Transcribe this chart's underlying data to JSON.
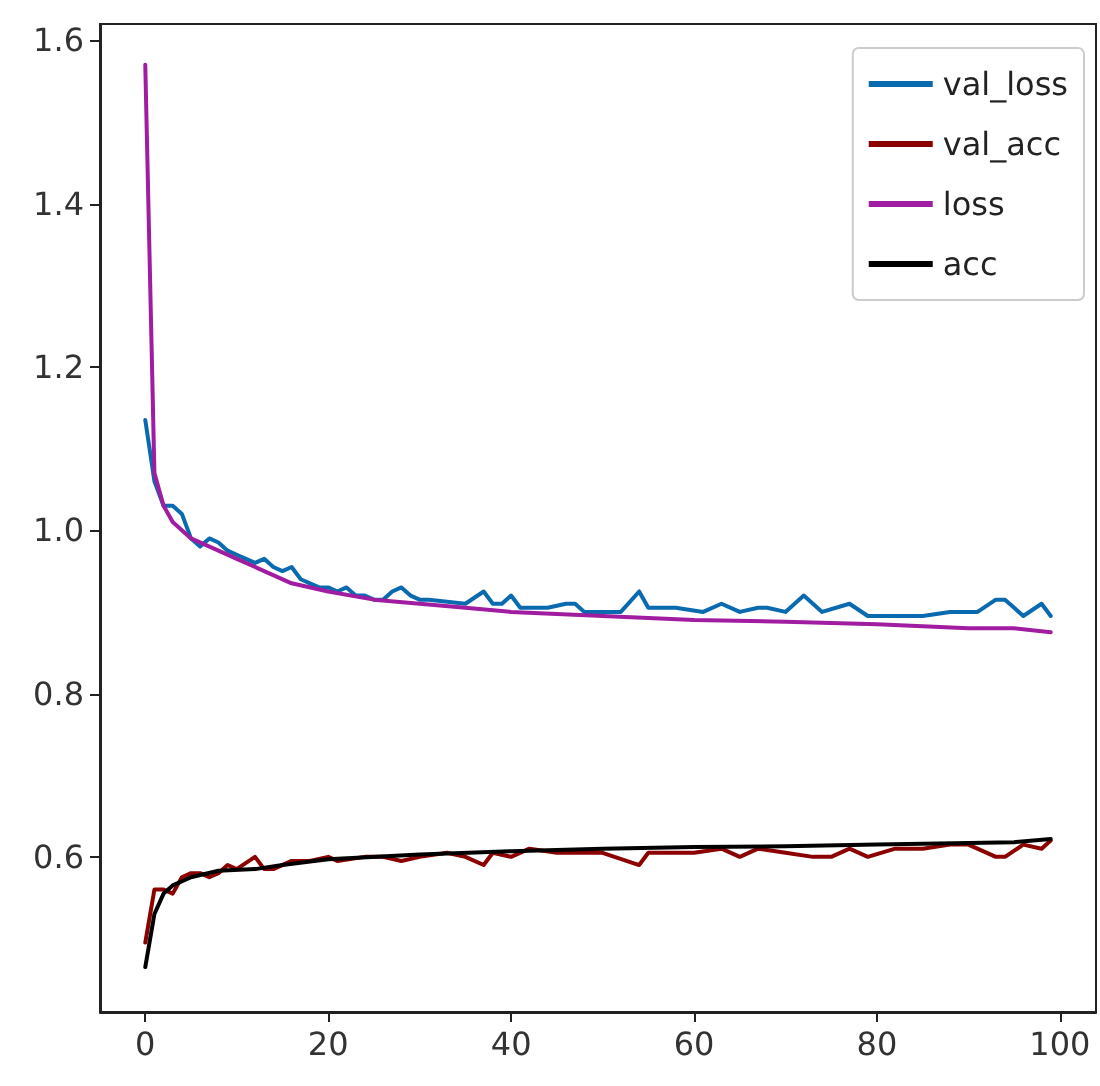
{
  "chart_data": {
    "type": "line",
    "xlim": [
      -4.95,
      103.95
    ],
    "xticks": [
      0,
      20,
      40,
      60,
      80,
      100
    ],
    "ylim": [
      0.41,
      1.62
    ],
    "yticks": [
      {
        "value": 0.6,
        "label": "0.6"
      },
      {
        "value": 0.8,
        "label": "0.8"
      },
      {
        "value": 1.0,
        "label": "1.0"
      },
      {
        "value": 1.2,
        "label": "1.2"
      },
      {
        "value": 1.4,
        "label": "1.4"
      },
      {
        "value": 1.6,
        "label": "1.6"
      }
    ],
    "grid": false,
    "legend": "top right",
    "marker": "none",
    "line_style": "solid",
    "series": [
      {
        "name": "val_loss",
        "color": "#0a6ab0",
        "x": [
          0,
          1,
          2,
          3,
          4,
          5,
          6,
          7,
          8,
          9,
          10,
          11,
          12,
          13,
          14,
          15,
          16,
          17,
          18,
          19,
          20,
          21,
          22,
          23,
          24,
          25,
          26,
          27,
          28,
          29,
          30,
          31,
          35,
          37,
          38,
          39,
          40,
          41,
          44,
          46,
          47,
          48,
          52,
          54,
          55,
          58,
          61,
          63,
          65,
          67,
          68,
          70,
          72,
          74,
          77,
          79,
          82,
          85,
          88,
          91,
          93,
          94,
          95,
          96,
          98,
          99
        ],
        "values": [
          1.135,
          1.06,
          1.03,
          1.03,
          1.02,
          0.99,
          0.98,
          0.99,
          0.985,
          0.975,
          0.97,
          0.965,
          0.96,
          0.965,
          0.955,
          0.95,
          0.955,
          0.94,
          0.935,
          0.93,
          0.93,
          0.925,
          0.93,
          0.92,
          0.92,
          0.915,
          0.915,
          0.925,
          0.93,
          0.92,
          0.915,
          0.915,
          0.91,
          0.925,
          0.91,
          0.91,
          0.92,
          0.905,
          0.905,
          0.91,
          0.91,
          0.9,
          0.9,
          0.925,
          0.905,
          0.905,
          0.9,
          0.91,
          0.9,
          0.905,
          0.905,
          0.9,
          0.92,
          0.9,
          0.91,
          0.895,
          0.895,
          0.895,
          0.9,
          0.9,
          0.915,
          0.915,
          0.905,
          0.895,
          0.91,
          0.895
        ]
      },
      {
        "name": "val_acc",
        "color": "#8b0000",
        "x": [
          0,
          1,
          2,
          3,
          4,
          5,
          6,
          7,
          8,
          9,
          10,
          12,
          13,
          14,
          16,
          18,
          20,
          21,
          24,
          26,
          28,
          30,
          33,
          35,
          37,
          38,
          40,
          42,
          45,
          50,
          54,
          55,
          60,
          63,
          65,
          67,
          70,
          73,
          75,
          77,
          79,
          82,
          85,
          88,
          90,
          93,
          94,
          96,
          98,
          99
        ],
        "values": [
          0.495,
          0.56,
          0.56,
          0.555,
          0.575,
          0.58,
          0.58,
          0.575,
          0.58,
          0.59,
          0.585,
          0.6,
          0.585,
          0.585,
          0.595,
          0.595,
          0.6,
          0.595,
          0.6,
          0.6,
          0.595,
          0.6,
          0.605,
          0.6,
          0.59,
          0.605,
          0.6,
          0.61,
          0.605,
          0.605,
          0.59,
          0.605,
          0.605,
          0.61,
          0.6,
          0.61,
          0.605,
          0.6,
          0.6,
          0.61,
          0.6,
          0.61,
          0.61,
          0.615,
          0.615,
          0.6,
          0.6,
          0.615,
          0.61,
          0.62
        ]
      },
      {
        "name": "loss",
        "color": "#a01ca0",
        "x": [
          0,
          1,
          2,
          3,
          5,
          8,
          10,
          13,
          16,
          20,
          25,
          30,
          35,
          40,
          50,
          60,
          70,
          80,
          90,
          95,
          99
        ],
        "values": [
          1.57,
          1.07,
          1.03,
          1.01,
          0.99,
          0.975,
          0.965,
          0.95,
          0.935,
          0.925,
          0.915,
          0.91,
          0.905,
          0.9,
          0.895,
          0.89,
          0.888,
          0.885,
          0.88,
          0.88,
          0.875
        ]
      },
      {
        "name": "acc",
        "color": "#000000",
        "x": [
          0,
          1,
          2,
          3,
          5,
          8,
          12,
          15,
          20,
          30,
          40,
          50,
          60,
          70,
          80,
          90,
          95,
          99
        ],
        "values": [
          0.465,
          0.53,
          0.555,
          0.565,
          0.575,
          0.583,
          0.585,
          0.59,
          0.597,
          0.603,
          0.607,
          0.61,
          0.612,
          0.613,
          0.615,
          0.617,
          0.618,
          0.622
        ]
      }
    ]
  }
}
